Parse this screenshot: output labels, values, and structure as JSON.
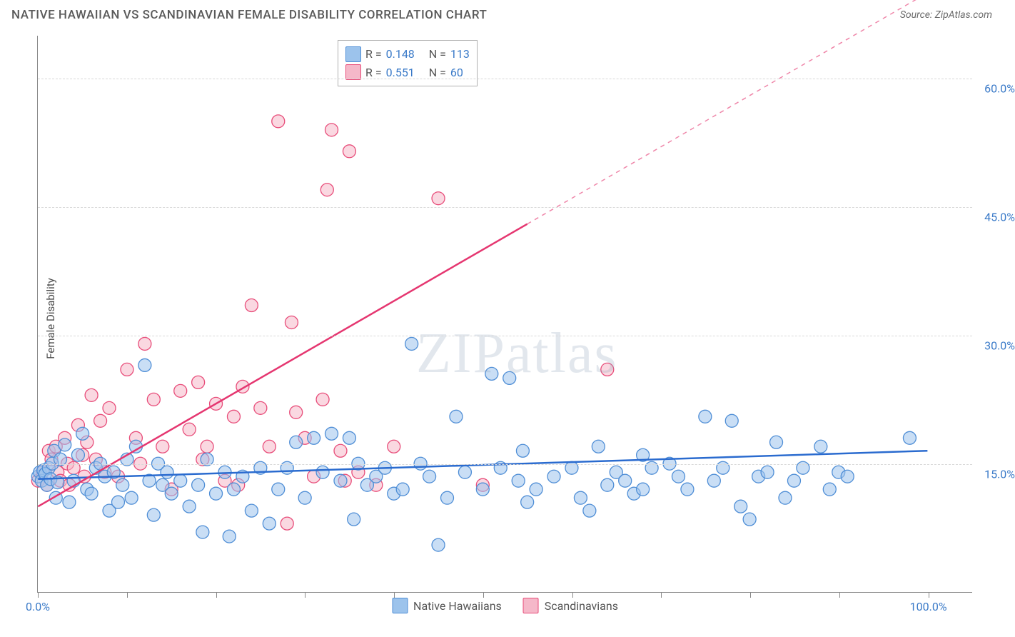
{
  "header": {
    "title": "NATIVE HAWAIIAN VS SCANDINAVIAN FEMALE DISABILITY CORRELATION CHART",
    "source_prefix": "Source: ",
    "source_name": "ZipAtlas.com"
  },
  "y_axis": {
    "label": "Female Disability",
    "min": 0,
    "max": 65,
    "ticks": [
      {
        "v": 15,
        "label": "15.0%"
      },
      {
        "v": 30,
        "label": "30.0%"
      },
      {
        "v": 45,
        "label": "45.0%"
      },
      {
        "v": 60,
        "label": "60.0%"
      }
    ]
  },
  "x_axis": {
    "min": 0,
    "max": 105,
    "ticks_major": [
      0,
      100
    ],
    "tick_labels": {
      "0": "0.0%",
      "100": "100.0%"
    },
    "ticks_minor": [
      10,
      20,
      30,
      40,
      50,
      60,
      70,
      80,
      90
    ]
  },
  "series": {
    "a": {
      "name": "Native Hawaiians",
      "fill": "#9cc3ec",
      "stroke": "#4f8ed6",
      "line_color": "#2a6bcf",
      "R": "0.148",
      "N": "113",
      "trend": {
        "x1": 0,
        "y1": 13.2,
        "x2": 100,
        "y2": 16.5
      },
      "points": [
        [
          0,
          13.5
        ],
        [
          0.2,
          14.0
        ],
        [
          0.4,
          13.0
        ],
        [
          0.6,
          14.2
        ],
        [
          0.8,
          13.8
        ],
        [
          1,
          12.5
        ],
        [
          1.2,
          14.5
        ],
        [
          1.4,
          13.2
        ],
        [
          1.6,
          15.0
        ],
        [
          1.8,
          16.5
        ],
        [
          2,
          11.0
        ],
        [
          2.2,
          12.8
        ],
        [
          2.5,
          15.5
        ],
        [
          3,
          17.2
        ],
        [
          3.5,
          10.5
        ],
        [
          4,
          13.0
        ],
        [
          4.5,
          16.0
        ],
        [
          5,
          18.5
        ],
        [
          5.5,
          12.0
        ],
        [
          6,
          11.5
        ],
        [
          6.5,
          14.5
        ],
        [
          7,
          15.0
        ],
        [
          7.5,
          13.5
        ],
        [
          8,
          9.5
        ],
        [
          8.5,
          14.0
        ],
        [
          9,
          10.5
        ],
        [
          9.5,
          12.5
        ],
        [
          10,
          15.5
        ],
        [
          10.5,
          11.0
        ],
        [
          11,
          17.0
        ],
        [
          12,
          26.5
        ],
        [
          12.5,
          13.0
        ],
        [
          13,
          9.0
        ],
        [
          13.5,
          15.0
        ],
        [
          14,
          12.5
        ],
        [
          14.5,
          14.0
        ],
        [
          15,
          11.5
        ],
        [
          16,
          13.0
        ],
        [
          17,
          10.0
        ],
        [
          18,
          12.5
        ],
        [
          18.5,
          7.0
        ],
        [
          19,
          15.5
        ],
        [
          20,
          11.5
        ],
        [
          21,
          14.0
        ],
        [
          21.5,
          6.5
        ],
        [
          22,
          12.0
        ],
        [
          23,
          13.5
        ],
        [
          24,
          9.5
        ],
        [
          25,
          14.5
        ],
        [
          26,
          8.0
        ],
        [
          27,
          12.0
        ],
        [
          28,
          14.5
        ],
        [
          29,
          17.5
        ],
        [
          30,
          11.0
        ],
        [
          31,
          18.0
        ],
        [
          32,
          14.0
        ],
        [
          33,
          18.5
        ],
        [
          34,
          13.0
        ],
        [
          35,
          18.0
        ],
        [
          35.5,
          8.5
        ],
        [
          36,
          15.0
        ],
        [
          37,
          12.5
        ],
        [
          38,
          13.5
        ],
        [
          39,
          14.5
        ],
        [
          40,
          11.5
        ],
        [
          41,
          12.0
        ],
        [
          42,
          29.0
        ],
        [
          43,
          15.0
        ],
        [
          44,
          13.5
        ],
        [
          45,
          5.5
        ],
        [
          46,
          11.0
        ],
        [
          47,
          20.5
        ],
        [
          48,
          14.0
        ],
        [
          50,
          12.0
        ],
        [
          51,
          25.5
        ],
        [
          52,
          14.5
        ],
        [
          53,
          25.0
        ],
        [
          54,
          13.0
        ],
        [
          54.5,
          16.5
        ],
        [
          55,
          10.5
        ],
        [
          56,
          12.0
        ],
        [
          58,
          13.5
        ],
        [
          60,
          14.5
        ],
        [
          61,
          11.0
        ],
        [
          62,
          9.5
        ],
        [
          63,
          17.0
        ],
        [
          64,
          12.5
        ],
        [
          65,
          14.0
        ],
        [
          66,
          13.0
        ],
        [
          67,
          11.5
        ],
        [
          68,
          12.0
        ],
        [
          69,
          14.5
        ],
        [
          71,
          15.0
        ],
        [
          72,
          13.5
        ],
        [
          73,
          12.0
        ],
        [
          75,
          20.5
        ],
        [
          76,
          13.0
        ],
        [
          77,
          14.5
        ],
        [
          78,
          20.0
        ],
        [
          79,
          10.0
        ],
        [
          80,
          8.5
        ],
        [
          81,
          13.5
        ],
        [
          82,
          14.0
        ],
        [
          83,
          17.5
        ],
        [
          84,
          11.0
        ],
        [
          85,
          13.0
        ],
        [
          86,
          14.5
        ],
        [
          88,
          17.0
        ],
        [
          89,
          12.0
        ],
        [
          90,
          14.0
        ],
        [
          91,
          13.5
        ],
        [
          98,
          18.0
        ],
        [
          68,
          16.0
        ]
      ]
    },
    "b": {
      "name": "Scandinavians",
      "fill": "#f5b8c9",
      "stroke": "#e84d7a",
      "line_color": "#e53670",
      "R": "0.551",
      "N": "60",
      "trend_solid": {
        "x1": 0,
        "y1": 10.0,
        "x2": 55,
        "y2": 43.0
      },
      "trend_dash": {
        "x1": 55,
        "y1": 43.0,
        "x2": 100,
        "y2": 70.0
      },
      "points": [
        [
          0,
          13.0
        ],
        [
          0.5,
          14.0
        ],
        [
          1,
          12.5
        ],
        [
          1.2,
          16.5
        ],
        [
          1.5,
          15.5
        ],
        [
          2,
          17.0
        ],
        [
          2.2,
          14.0
        ],
        [
          2.5,
          13.0
        ],
        [
          3,
          18.0
        ],
        [
          3.3,
          15.0
        ],
        [
          3.5,
          12.5
        ],
        [
          4,
          14.5
        ],
        [
          4.5,
          19.5
        ],
        [
          5,
          16.0
        ],
        [
          5.2,
          13.5
        ],
        [
          5.5,
          17.5
        ],
        [
          6,
          23.0
        ],
        [
          6.5,
          15.5
        ],
        [
          7,
          20.0
        ],
        [
          7.5,
          14.0
        ],
        [
          8,
          21.5
        ],
        [
          9,
          13.5
        ],
        [
          10,
          26.0
        ],
        [
          11,
          18.0
        ],
        [
          11.5,
          15.0
        ],
        [
          12,
          29.0
        ],
        [
          13,
          22.5
        ],
        [
          14,
          17.0
        ],
        [
          15,
          12.0
        ],
        [
          16,
          23.5
        ],
        [
          17,
          19.0
        ],
        [
          18,
          24.5
        ],
        [
          18.5,
          15.5
        ],
        [
          19,
          17.0
        ],
        [
          20,
          22.0
        ],
        [
          21,
          13.0
        ],
        [
          22,
          20.5
        ],
        [
          22.5,
          12.5
        ],
        [
          23,
          24.0
        ],
        [
          24,
          33.5
        ],
        [
          25,
          21.5
        ],
        [
          26,
          17.0
        ],
        [
          27,
          55.0
        ],
        [
          28,
          8.0
        ],
        [
          28.5,
          31.5
        ],
        [
          29,
          21.0
        ],
        [
          30,
          18.0
        ],
        [
          31,
          13.5
        ],
        [
          32,
          22.5
        ],
        [
          32.5,
          47.0
        ],
        [
          33,
          54.0
        ],
        [
          34,
          16.5
        ],
        [
          34.5,
          13.0
        ],
        [
          35,
          51.5
        ],
        [
          36,
          14.0
        ],
        [
          38,
          12.5
        ],
        [
          40,
          17.0
        ],
        [
          45,
          46.0
        ],
        [
          50,
          12.5
        ],
        [
          64,
          26.0
        ]
      ]
    }
  },
  "watermark": {
    "a": "ZIP",
    "b": "atlas"
  },
  "chart_style": {
    "point_radius": 9,
    "point_opacity": 0.55,
    "trend_width": 2.5,
    "grid_color": "#d8d8d8",
    "axis_color": "#888888",
    "background": "#ffffff",
    "tick_label_color": "#3a7ac8",
    "axis_label_color": "#4a4a4a",
    "title_color": "#5a5a5a"
  }
}
